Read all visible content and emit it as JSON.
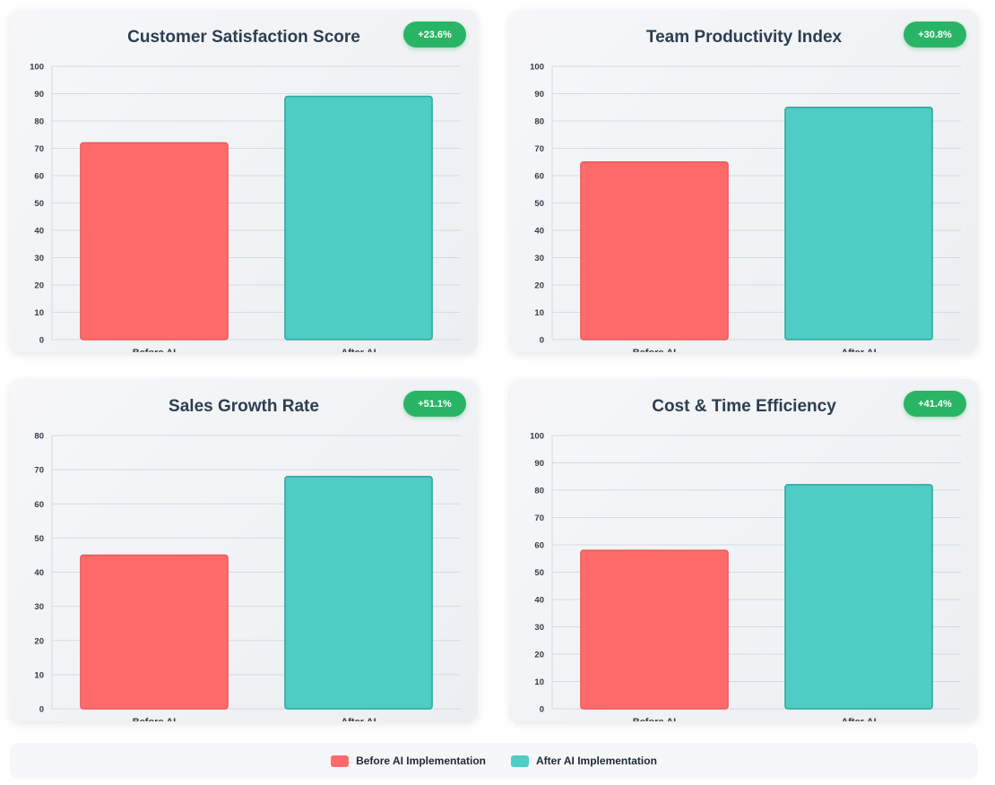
{
  "colors": {
    "before": "#ff6b6b",
    "after": "#4ecdc4",
    "badge": "#2ab566"
  },
  "chart_data": [
    {
      "type": "bar",
      "title": "Customer Satisfaction Score",
      "badge": "+23.6%",
      "categories": [
        "Before AI",
        "After AI"
      ],
      "values": [
        72,
        89
      ],
      "ylim": [
        0,
        100
      ],
      "yticks": [
        0,
        10,
        20,
        30,
        40,
        50,
        60,
        70,
        80,
        90,
        100
      ]
    },
    {
      "type": "bar",
      "title": "Team Productivity Index",
      "badge": "+30.8%",
      "categories": [
        "Before AI",
        "After AI"
      ],
      "values": [
        65,
        85
      ],
      "ylim": [
        0,
        100
      ],
      "yticks": [
        0,
        10,
        20,
        30,
        40,
        50,
        60,
        70,
        80,
        90,
        100
      ]
    },
    {
      "type": "bar",
      "title": "Sales Growth Rate",
      "badge": "+51.1%",
      "categories": [
        "Before AI",
        "After AI"
      ],
      "values": [
        45,
        68
      ],
      "ylim": [
        0,
        80
      ],
      "yticks": [
        0,
        10,
        20,
        30,
        40,
        50,
        60,
        70,
        80
      ]
    },
    {
      "type": "bar",
      "title": "Cost & Time Efficiency",
      "badge": "+41.4%",
      "categories": [
        "Before AI",
        "After AI"
      ],
      "values": [
        58,
        82
      ],
      "ylim": [
        0,
        100
      ],
      "yticks": [
        0,
        10,
        20,
        30,
        40,
        50,
        60,
        70,
        80,
        90,
        100
      ]
    }
  ],
  "legend": {
    "items": [
      {
        "label": "Before AI Implementation",
        "color": "#ff6b6b"
      },
      {
        "label": "After AI Implementation",
        "color": "#4ecdc4"
      }
    ]
  }
}
